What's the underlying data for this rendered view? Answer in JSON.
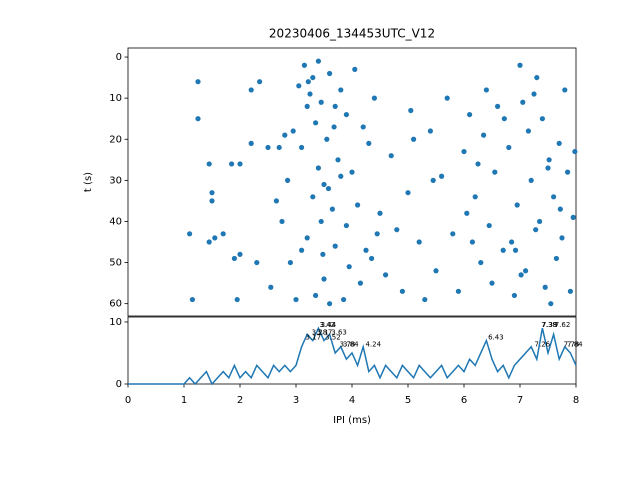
{
  "chart_data": [
    {
      "type": "scatter",
      "title": "20230406_134453UTC_V12",
      "y_label": "t (s)",
      "color": "#1f77b4",
      "xlim": [
        0,
        8
      ],
      "ylim": [
        63,
        -2.2
      ],
      "yticks": [
        0,
        10,
        20,
        30,
        40,
        50,
        60
      ],
      "x": [
        1.1,
        1.15,
        1.25,
        1.25,
        1.45,
        1.5,
        1.5,
        1.45,
        1.55,
        1.7,
        1.85,
        1.9,
        1.95,
        2.0,
        2.0,
        2.2,
        2.2,
        2.3,
        2.35,
        2.5,
        2.55,
        2.65,
        2.7,
        2.75,
        2.8,
        2.85,
        2.9,
        2.95,
        3.0,
        3.05,
        3.1,
        3.1,
        3.15,
        3.2,
        3.2,
        3.25,
        3.3,
        3.3,
        3.35,
        3.35,
        3.4,
        3.4,
        3.45,
        3.45,
        3.5,
        3.5,
        3.55,
        3.6,
        3.6,
        3.65,
        3.7,
        3.7,
        3.75,
        3.8,
        3.8,
        3.85,
        3.9,
        3.9,
        3.95,
        4.0,
        4.05,
        4.1,
        4.15,
        4.2,
        4.25,
        4.3,
        4.35,
        4.4,
        4.45,
        4.5,
        4.6,
        4.7,
        4.8,
        4.9,
        5.0,
        5.05,
        5.1,
        5.2,
        5.3,
        5.4,
        5.45,
        5.5,
        5.6,
        5.7,
        5.8,
        5.9,
        6.0,
        6.05,
        6.1,
        6.15,
        6.2,
        6.25,
        6.3,
        6.35,
        6.4,
        6.45,
        6.5,
        6.55,
        6.6,
        6.7,
        6.8,
        6.85,
        6.9,
        6.95,
        7.0,
        7.05,
        7.1,
        7.15,
        7.2,
        7.25,
        7.3,
        7.35,
        7.4,
        7.45,
        7.5,
        7.55,
        7.6,
        7.65,
        7.7,
        7.75,
        7.8,
        7.85,
        7.9,
        7.95,
        7.98,
        3.22,
        3.48,
        3.58,
        3.68,
        7.02,
        7.28,
        7.52,
        7.72,
        6.72,
        6.92
      ],
      "values": [
        43,
        59,
        6,
        15,
        26,
        33,
        35,
        45,
        44,
        43,
        26,
        49,
        59,
        48,
        26,
        8,
        21,
        50,
        6,
        22,
        56,
        35,
        22,
        40,
        19,
        30,
        50,
        18,
        59,
        7,
        47,
        22,
        2,
        12,
        44,
        9,
        5,
        34,
        16,
        58,
        1,
        27,
        11,
        40,
        54,
        31,
        20,
        4,
        60,
        37,
        12,
        46,
        25,
        29,
        8,
        59,
        14,
        41,
        51,
        28,
        3,
        36,
        55,
        17,
        47,
        21,
        49,
        10,
        43,
        38,
        53,
        24,
        42,
        57,
        33,
        13,
        20,
        45,
        59,
        18,
        30,
        52,
        29,
        10,
        43,
        57,
        23,
        38,
        14,
        45,
        34,
        26,
        50,
        19,
        8,
        41,
        55,
        28,
        12,
        47,
        22,
        45,
        58,
        36,
        2,
        11,
        52,
        18,
        30,
        9,
        5,
        40,
        15,
        56,
        27,
        60,
        34,
        49,
        21,
        44,
        8,
        28,
        57,
        39,
        23,
        6,
        48,
        32,
        17,
        53,
        42,
        25,
        37,
        15,
        47
      ]
    },
    {
      "type": "line",
      "x_label": "IPI (ms)",
      "color": "#1f77b4",
      "xlim": [
        0,
        8
      ],
      "ylim": [
        0,
        10.8
      ],
      "xticks": [
        0,
        1,
        2,
        3,
        4,
        5,
        6,
        7,
        8
      ],
      "yticks": [
        0,
        10
      ],
      "x": [
        0,
        0.1,
        0.2,
        0.3,
        0.4,
        0.5,
        0.6,
        0.7,
        0.8,
        0.9,
        1.0,
        1.1,
        1.2,
        1.3,
        1.4,
        1.5,
        1.6,
        1.7,
        1.8,
        1.9,
        2.0,
        2.1,
        2.2,
        2.3,
        2.4,
        2.5,
        2.6,
        2.7,
        2.8,
        2.9,
        3.0,
        3.1,
        3.2,
        3.3,
        3.4,
        3.5,
        3.6,
        3.7,
        3.8,
        3.9,
        4.0,
        4.1,
        4.2,
        4.3,
        4.4,
        4.5,
        4.6,
        4.7,
        4.8,
        4.9,
        5.0,
        5.1,
        5.2,
        5.3,
        5.4,
        5.5,
        5.6,
        5.7,
        5.8,
        5.9,
        6.0,
        6.1,
        6.2,
        6.3,
        6.4,
        6.5,
        6.6,
        6.7,
        6.8,
        6.9,
        7.0,
        7.1,
        7.2,
        7.3,
        7.4,
        7.5,
        7.6,
        7.7,
        7.8,
        7.9,
        8.0
      ],
      "values": [
        0,
        0,
        0,
        0,
        0,
        0,
        0,
        0,
        0,
        0,
        0,
        1,
        0,
        1,
        2,
        0,
        1,
        2,
        1,
        3,
        1,
        2,
        1,
        3,
        2,
        1,
        3,
        2,
        3,
        2,
        3,
        6,
        8,
        7,
        9,
        7,
        8,
        5,
        6,
        4,
        5,
        3,
        6,
        2,
        3,
        1,
        3,
        2,
        1,
        3,
        2,
        1,
        3,
        2,
        1,
        2,
        3,
        1,
        2,
        3,
        2,
        4,
        3,
        5,
        7,
        4,
        2,
        3,
        1,
        3,
        4,
        5,
        6,
        4,
        9,
        5,
        8,
        4,
        6,
        5,
        3
      ],
      "annotations": [
        {
          "x": 3.17,
          "y": 7.5,
          "label": "3.17"
        },
        {
          "x": 3.28,
          "y": 8.3,
          "label": "3.28"
        },
        {
          "x": 3.37,
          "y": 8.3,
          "label": "3.37"
        },
        {
          "x": 3.42,
          "y": 9.5,
          "label": "3.42"
        },
        {
          "x": 3.44,
          "y": 9.5,
          "label": "3.44"
        },
        {
          "x": 3.52,
          "y": 7.5,
          "label": "3.52"
        },
        {
          "x": 3.63,
          "y": 8.3,
          "label": "3.63"
        },
        {
          "x": 3.78,
          "y": 6.4,
          "label": "3.78"
        },
        {
          "x": 3.84,
          "y": 6.4,
          "label": "3.84"
        },
        {
          "x": 4.24,
          "y": 6.4,
          "label": "4.24"
        },
        {
          "x": 6.43,
          "y": 7.5,
          "label": "6.43"
        },
        {
          "x": 7.26,
          "y": 6.4,
          "label": "7.26"
        },
        {
          "x": 7.38,
          "y": 9.5,
          "label": "7.38"
        },
        {
          "x": 7.39,
          "y": 9.5,
          "label": "7.39"
        },
        {
          "x": 7.62,
          "y": 9.5,
          "label": "7.62"
        },
        {
          "x": 7.78,
          "y": 6.4,
          "label": "7.78"
        },
        {
          "x": 7.84,
          "y": 6.4,
          "label": "7.84"
        }
      ]
    }
  ]
}
